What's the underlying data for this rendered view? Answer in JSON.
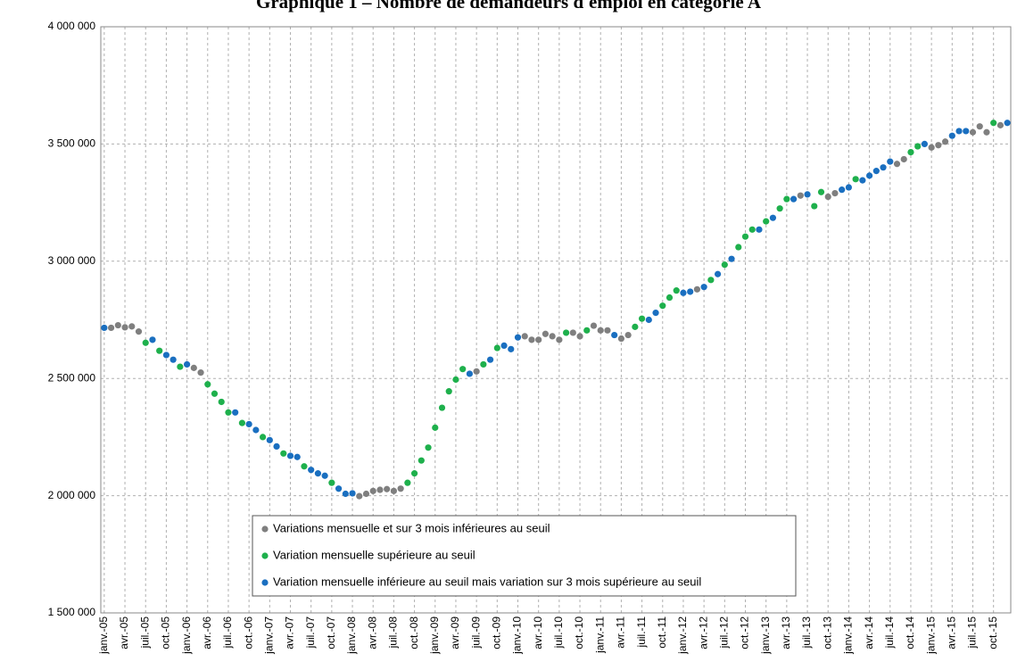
{
  "chart_data": {
    "type": "scatter",
    "title": "Graphique 1 – Nombre de demandeurs d'emploi en catégorie A",
    "categories": [
      "janv.-05",
      null,
      null,
      "avr.-05",
      null,
      null,
      "juil.-05",
      null,
      null,
      "oct.-05",
      null,
      null,
      "janv.-06",
      null,
      null,
      "avr.-06",
      null,
      null,
      "juil.-06",
      null,
      null,
      "oct.-06",
      null,
      null,
      "janv.-07",
      null,
      null,
      "avr.-07",
      null,
      null,
      "juil.-07",
      null,
      null,
      "oct.-07",
      null,
      null,
      "janv.-08",
      null,
      null,
      "avr.-08",
      null,
      null,
      "juil.-08",
      null,
      null,
      "oct.-08",
      null,
      null,
      "janv.-09",
      null,
      null,
      "avr.-09",
      null,
      null,
      "juil.-09",
      null,
      null,
      "oct.-09",
      null,
      null,
      "janv.-10",
      null,
      null,
      "avr.-10",
      null,
      null,
      "juil.-10",
      null,
      null,
      "oct.-10",
      null,
      null,
      "janv.-11",
      null,
      null,
      "avr.-11",
      null,
      null,
      "juil.-11",
      null,
      null,
      "oct.-11",
      null,
      null,
      "janv.-12",
      null,
      null,
      "avr.-12",
      null,
      null,
      "juil.-12",
      null,
      null,
      "oct.-12",
      null,
      null,
      "janv.-13",
      null,
      null,
      "avr.-13",
      null,
      null,
      "juil.-13",
      null,
      null,
      "oct.-13",
      null,
      null,
      "janv.-14",
      null,
      null,
      "avr.-14",
      null,
      null,
      "juil.-14",
      null,
      null,
      "oct.-14",
      null,
      null,
      "janv.-15",
      null,
      null,
      "avr.-15",
      null,
      null,
      "juil.-15",
      null,
      null,
      "oct.-15",
      null,
      null
    ],
    "series": [
      {
        "name": "Variations mensuelle et sur 3 mois inférieures au seuil",
        "color": "#7f7f7f",
        "values": [
          null,
          2716000,
          2727000,
          2718000,
          2722000,
          2700000,
          null,
          null,
          null,
          null,
          null,
          null,
          null,
          2545000,
          2525000,
          null,
          null,
          null,
          null,
          null,
          null,
          null,
          null,
          null,
          null,
          null,
          null,
          null,
          null,
          null,
          null,
          null,
          null,
          null,
          null,
          null,
          null,
          1998000,
          2008000,
          2020000,
          2025000,
          2028000,
          2020000,
          2030000,
          null,
          null,
          null,
          null,
          null,
          null,
          null,
          null,
          null,
          null,
          2530000,
          null,
          null,
          null,
          null,
          null,
          null,
          2680000,
          2665000,
          2665000,
          2690000,
          2680000,
          2665000,
          null,
          2695000,
          2680000,
          null,
          2725000,
          2705000,
          2705000,
          null,
          2670000,
          2685000,
          null,
          null,
          null,
          null,
          null,
          null,
          null,
          null,
          null,
          2880000,
          null,
          null,
          null,
          null,
          null,
          null,
          null,
          null,
          null,
          null,
          null,
          null,
          null,
          null,
          3280000,
          null,
          null,
          null,
          3275000,
          3290000,
          null,
          null,
          null,
          null,
          null,
          null,
          null,
          null,
          3415000,
          3435000,
          null,
          null,
          null,
          3485000,
          3495000,
          3510000,
          null,
          null,
          null,
          3550000,
          3575000,
          3550000,
          null,
          3580000,
          null
        ]
      },
      {
        "name": "Variation mensuelle supérieure au seuil",
        "color": "#1eb04c",
        "values": [
          null,
          null,
          null,
          null,
          null,
          null,
          2652000,
          null,
          2618000,
          null,
          null,
          2550000,
          null,
          null,
          null,
          2475000,
          2435000,
          2400000,
          2355000,
          null,
          2310000,
          null,
          null,
          2250000,
          null,
          null,
          2180000,
          null,
          null,
          2125000,
          null,
          null,
          null,
          2055000,
          null,
          null,
          null,
          null,
          null,
          null,
          null,
          null,
          null,
          null,
          2055000,
          2095000,
          2150000,
          2205000,
          2290000,
          2375000,
          2445000,
          2495000,
          2540000,
          null,
          null,
          2560000,
          null,
          2630000,
          null,
          null,
          null,
          null,
          null,
          null,
          null,
          null,
          null,
          2695000,
          null,
          null,
          2705000,
          null,
          null,
          null,
          null,
          null,
          null,
          2720000,
          2755000,
          null,
          null,
          2810000,
          2845000,
          2875000,
          null,
          null,
          null,
          null,
          2920000,
          null,
          2985000,
          null,
          3060000,
          3105000,
          3135000,
          null,
          3170000,
          null,
          3225000,
          3265000,
          null,
          null,
          null,
          3235000,
          3295000,
          null,
          null,
          null,
          null,
          3350000,
          null,
          null,
          null,
          null,
          null,
          null,
          null,
          3465000,
          3490000,
          null,
          null,
          null,
          null,
          null,
          null,
          null,
          null,
          null,
          null,
          3590000,
          null,
          null
        ]
      },
      {
        "name": "Variation mensuelle inférieure au seuil mais variation sur 3 mois supérieure au seuil",
        "color": "#1a6fc0",
        "values": [
          2716000,
          null,
          null,
          null,
          null,
          null,
          null,
          2665000,
          null,
          2600000,
          2580000,
          null,
          2560000,
          null,
          null,
          null,
          null,
          null,
          null,
          2355000,
          null,
          2305000,
          2280000,
          null,
          2237000,
          2210000,
          null,
          2170000,
          2165000,
          null,
          2110000,
          2095000,
          2085000,
          null,
          2030000,
          2008000,
          2010000,
          null,
          null,
          null,
          null,
          null,
          null,
          null,
          null,
          null,
          null,
          null,
          null,
          null,
          null,
          null,
          null,
          2520000,
          null,
          null,
          2580000,
          null,
          2640000,
          2625000,
          2675000,
          null,
          null,
          null,
          null,
          null,
          null,
          null,
          null,
          null,
          null,
          null,
          null,
          null,
          2685000,
          null,
          null,
          null,
          null,
          2750000,
          2780000,
          null,
          null,
          null,
          2865000,
          2870000,
          null,
          2890000,
          null,
          2945000,
          null,
          3010000,
          null,
          null,
          null,
          3135000,
          null,
          3185000,
          null,
          null,
          3265000,
          null,
          3285000,
          null,
          null,
          null,
          null,
          3305000,
          3315000,
          null,
          3345000,
          3365000,
          3385000,
          3400000,
          3425000,
          null,
          null,
          null,
          null,
          3500000,
          null,
          null,
          null,
          3535000,
          3555000,
          3555000,
          null,
          null,
          null,
          null,
          null,
          3590000
        ]
      }
    ],
    "ylim": [
      1500000,
      4000000
    ],
    "yticks": [
      {
        "value": 1500000,
        "label": "1 500 000"
      },
      {
        "value": 2000000,
        "label": "2 000 000"
      },
      {
        "value": 2500000,
        "label": "2 500 000"
      },
      {
        "value": 3000000,
        "label": "3 000 000"
      },
      {
        "value": 3500000,
        "label": "3 500 000"
      },
      {
        "value": 4000000,
        "label": "4 000 000"
      }
    ],
    "grid": true,
    "legend": "lower center"
  }
}
